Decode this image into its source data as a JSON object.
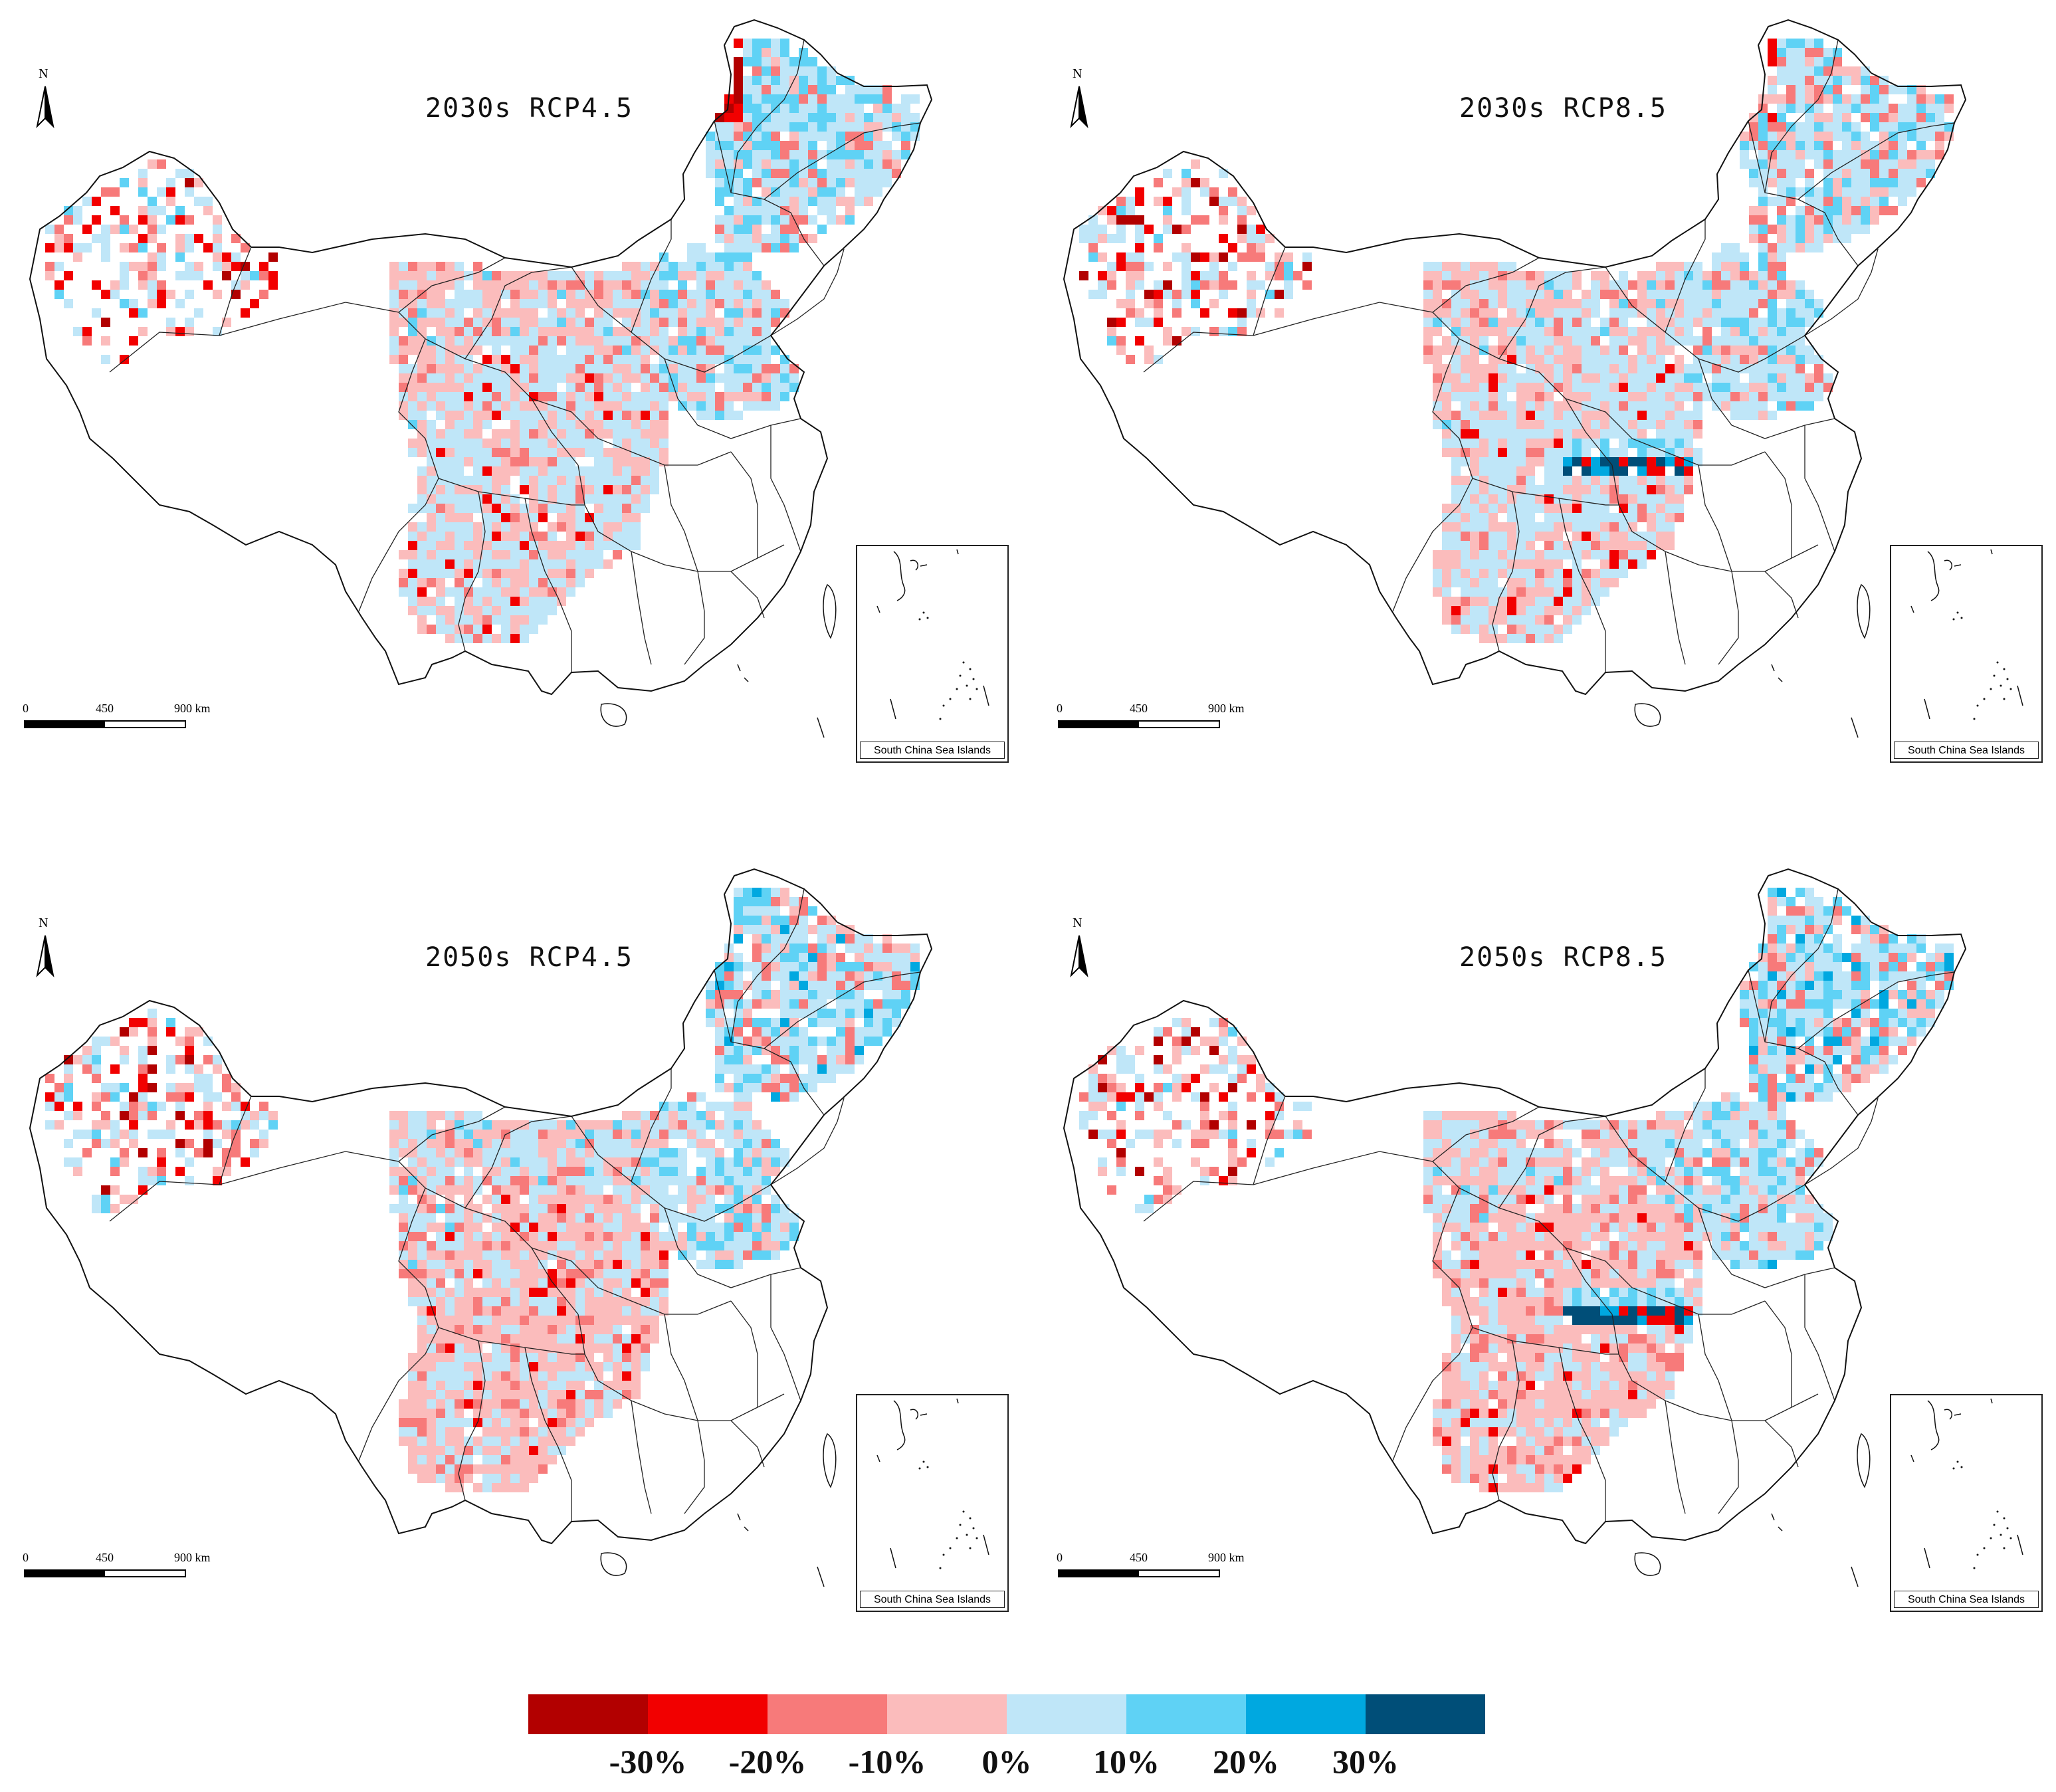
{
  "panels": [
    {
      "id": "p1",
      "title": "2030s  RCP4.5",
      "variant": 1
    },
    {
      "id": "p2",
      "title": "2030s  RCP8.5",
      "variant": 2
    },
    {
      "id": "p3",
      "title": "2050s  RCP4.5",
      "variant": 3
    },
    {
      "id": "p4",
      "title": "2050s  RCP8.5",
      "variant": 4
    }
  ],
  "north_label": "N",
  "scale_bar": {
    "labels": [
      "0",
      "450",
      "900 km"
    ]
  },
  "inset_caption": "South China Sea Islands",
  "legend": {
    "colors": [
      "#b20000",
      "#f20000",
      "#f77a7a",
      "#fbbcbc",
      "#bfe6f8",
      "#5fd2f5",
      "#00a8e0",
      "#004e78"
    ],
    "labels": [
      "-30%",
      "-20%",
      "-10%",
      "0%",
      "10%",
      "20%",
      "30%"
    ]
  }
}
